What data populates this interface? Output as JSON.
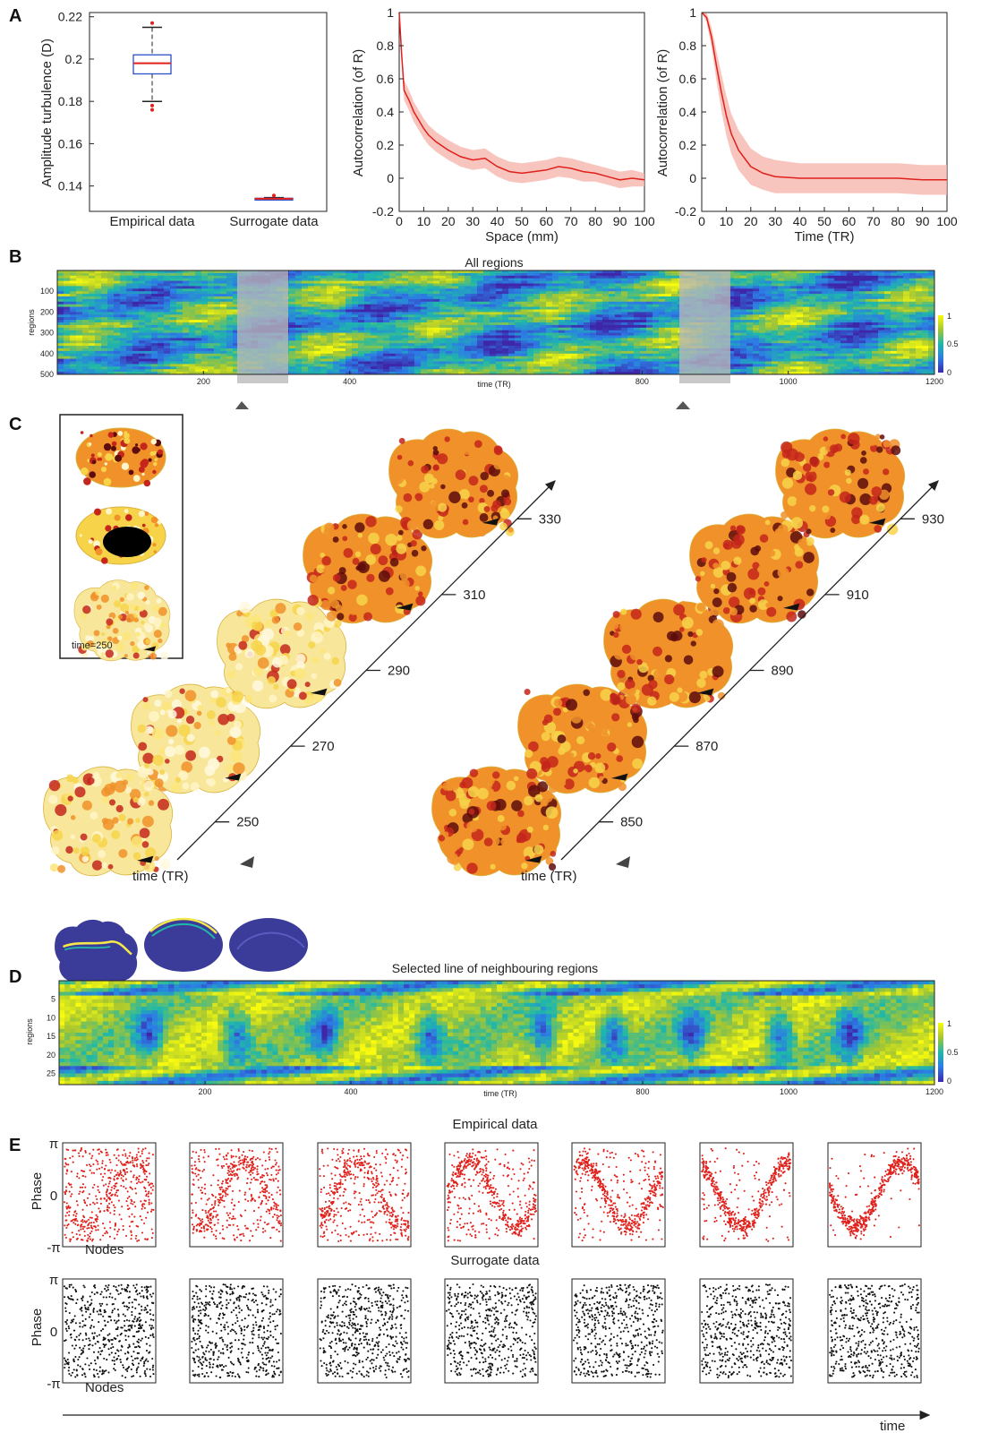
{
  "panel_letters": {
    "A": "A",
    "B": "B",
    "C": "C",
    "D": "D",
    "E": "E"
  },
  "colors": {
    "red": "#e0201b",
    "red_band": "#f6b1a8",
    "box_blue": "#2b4fc7",
    "brain_yellow": "#f7d34a",
    "brain_orange": "#f0912a",
    "brain_red": "#c4261b",
    "brain_dark": "#5e0c0c",
    "parula_low": "#3e26a8",
    "parula_mid": "#1fb8a9",
    "parula_high": "#f9fb0e",
    "brain_purple": "#3b3b9a"
  },
  "panel_a": {
    "box": {
      "ylabel": "Amplitude turbulence (D)",
      "categories": [
        "Empirical data",
        "Surrogate data"
      ],
      "yticks": [
        "0.14",
        "0.16",
        "0.18",
        "0.2",
        "0.22"
      ]
    },
    "space": {
      "xlabel": "Space (mm)",
      "ylabel": "Autocorrelation (of R)",
      "xticks": [
        "0",
        "10",
        "20",
        "30",
        "40",
        "50",
        "60",
        "70",
        "80",
        "90",
        "100"
      ],
      "yticks": [
        "-0.2",
        "0",
        "0.2",
        "0.4",
        "0.6",
        "0.8",
        "1"
      ]
    },
    "time": {
      "xlabel": "Time (TR)",
      "ylabel": "Autocorrelation (of R)",
      "xticks": [
        "0",
        "10",
        "20",
        "30",
        "40",
        "50",
        "60",
        "70",
        "80",
        "90",
        "100"
      ],
      "yticks": [
        "-0.2",
        "0",
        "0.2",
        "0.4",
        "0.6",
        "0.8",
        "1"
      ]
    }
  },
  "panel_b": {
    "title": "All regions",
    "ylabel": "regions",
    "xlabel": "time (TR)",
    "yticks": [
      "100",
      "200",
      "300",
      "400",
      "500"
    ],
    "xticks": [
      "200",
      "400",
      "800",
      "1000",
      "1200"
    ],
    "colorbar_ticks": [
      "1",
      "0.5",
      "0"
    ]
  },
  "panel_c": {
    "inset_label": "time=250",
    "axis_label": "time (TR)",
    "left_ticks": [
      "250",
      "270",
      "290",
      "310",
      "330"
    ],
    "right_ticks": [
      "850",
      "870",
      "890",
      "910",
      "930"
    ]
  },
  "panel_d": {
    "title": "Selected line of neighbouring regions",
    "ylabel": "regions",
    "xlabel": "time (TR)",
    "yticks": [
      "5",
      "10",
      "15",
      "20",
      "25"
    ],
    "xticks": [
      "200",
      "400",
      "800",
      "1000",
      "1200"
    ],
    "colorbar_ticks": [
      "1",
      "0.5",
      "0"
    ]
  },
  "panel_e": {
    "empirical_title": "Empirical data",
    "surrogate_title": "Surrogate data",
    "ylabel": "Phase",
    "xlabel": "Nodes",
    "yticks": [
      "π",
      "0",
      "-π"
    ],
    "time_label": "time"
  },
  "chart_data": [
    {
      "type": "box",
      "categories": [
        "Empirical data",
        "Surrogate data"
      ],
      "ylabel": "Amplitude turbulence (D)",
      "ylim": [
        0.128,
        0.222
      ],
      "boxes": [
        {
          "name": "Empirical data",
          "whisker_low": 0.18,
          "q1": 0.193,
          "median": 0.198,
          "q3": 0.202,
          "whisker_high": 0.215,
          "outliers": [
            0.217,
            0.178,
            0.176
          ]
        },
        {
          "name": "Surrogate data",
          "whisker_low": 0.1335,
          "q1": 0.1338,
          "median": 0.134,
          "q3": 0.1342,
          "whisker_high": 0.1345,
          "outliers": [
            0.1355
          ]
        }
      ]
    },
    {
      "type": "line",
      "xlabel": "Space (mm)",
      "ylabel": "Autocorrelation (of R)",
      "xlim": [
        0,
        100
      ],
      "ylim": [
        -0.2,
        1
      ],
      "x": [
        0,
        1,
        2,
        4,
        6,
        8,
        10,
        12,
        15,
        20,
        25,
        30,
        35,
        40,
        45,
        50,
        55,
        60,
        65,
        70,
        75,
        80,
        85,
        90,
        95,
        100
      ],
      "mean": [
        1.0,
        0.75,
        0.53,
        0.47,
        0.4,
        0.35,
        0.3,
        0.26,
        0.22,
        0.17,
        0.13,
        0.11,
        0.12,
        0.07,
        0.04,
        0.03,
        0.04,
        0.05,
        0.07,
        0.06,
        0.04,
        0.03,
        0.01,
        -0.01,
        0.0,
        -0.01
      ],
      "band_halfwidth": [
        0.0,
        0.04,
        0.06,
        0.06,
        0.06,
        0.06,
        0.06,
        0.06,
        0.06,
        0.06,
        0.06,
        0.06,
        0.06,
        0.06,
        0.06,
        0.06,
        0.06,
        0.06,
        0.06,
        0.06,
        0.06,
        0.05,
        0.05,
        0.05,
        0.05,
        0.04
      ]
    },
    {
      "type": "line",
      "xlabel": "Time (TR)",
      "ylabel": "Autocorrelation (of R)",
      "xlim": [
        0,
        100
      ],
      "ylim": [
        -0.2,
        1
      ],
      "x": [
        0,
        2,
        4,
        6,
        8,
        10,
        12,
        15,
        20,
        25,
        30,
        40,
        50,
        60,
        70,
        80,
        90,
        100
      ],
      "mean": [
        1.0,
        0.97,
        0.85,
        0.68,
        0.52,
        0.38,
        0.27,
        0.17,
        0.07,
        0.03,
        0.01,
        0.0,
        0.0,
        0.0,
        0.0,
        0.0,
        -0.01,
        -0.01
      ],
      "band_halfwidth": [
        0.0,
        0.03,
        0.06,
        0.09,
        0.11,
        0.12,
        0.12,
        0.12,
        0.11,
        0.1,
        0.1,
        0.09,
        0.09,
        0.09,
        0.09,
        0.09,
        0.09,
        0.09
      ]
    },
    {
      "type": "heatmap",
      "title": "All regions",
      "xlabel": "time (TR)",
      "ylabel": "regions",
      "xlim": [
        0,
        1200
      ],
      "ylim": [
        0,
        500
      ],
      "highlight_windows": [
        [
          250,
          320
        ],
        [
          855,
          925
        ]
      ],
      "colorbar": [
        0,
        0.5,
        1
      ]
    },
    {
      "type": "heatmap",
      "title": "Selected line of neighbouring regions",
      "xlabel": "time (TR)",
      "ylabel": "regions",
      "xlim": [
        0,
        1200
      ],
      "ylim": [
        0,
        28
      ],
      "colorbar": [
        0,
        0.5,
        1
      ]
    },
    {
      "type": "scatter",
      "title": "Empirical data",
      "xlabel": "Nodes",
      "ylabel": "Phase",
      "panels": 7
    },
    {
      "type": "scatter",
      "title": "Surrogate data",
      "xlabel": "Nodes",
      "ylabel": "Phase",
      "panels": 7
    }
  ]
}
